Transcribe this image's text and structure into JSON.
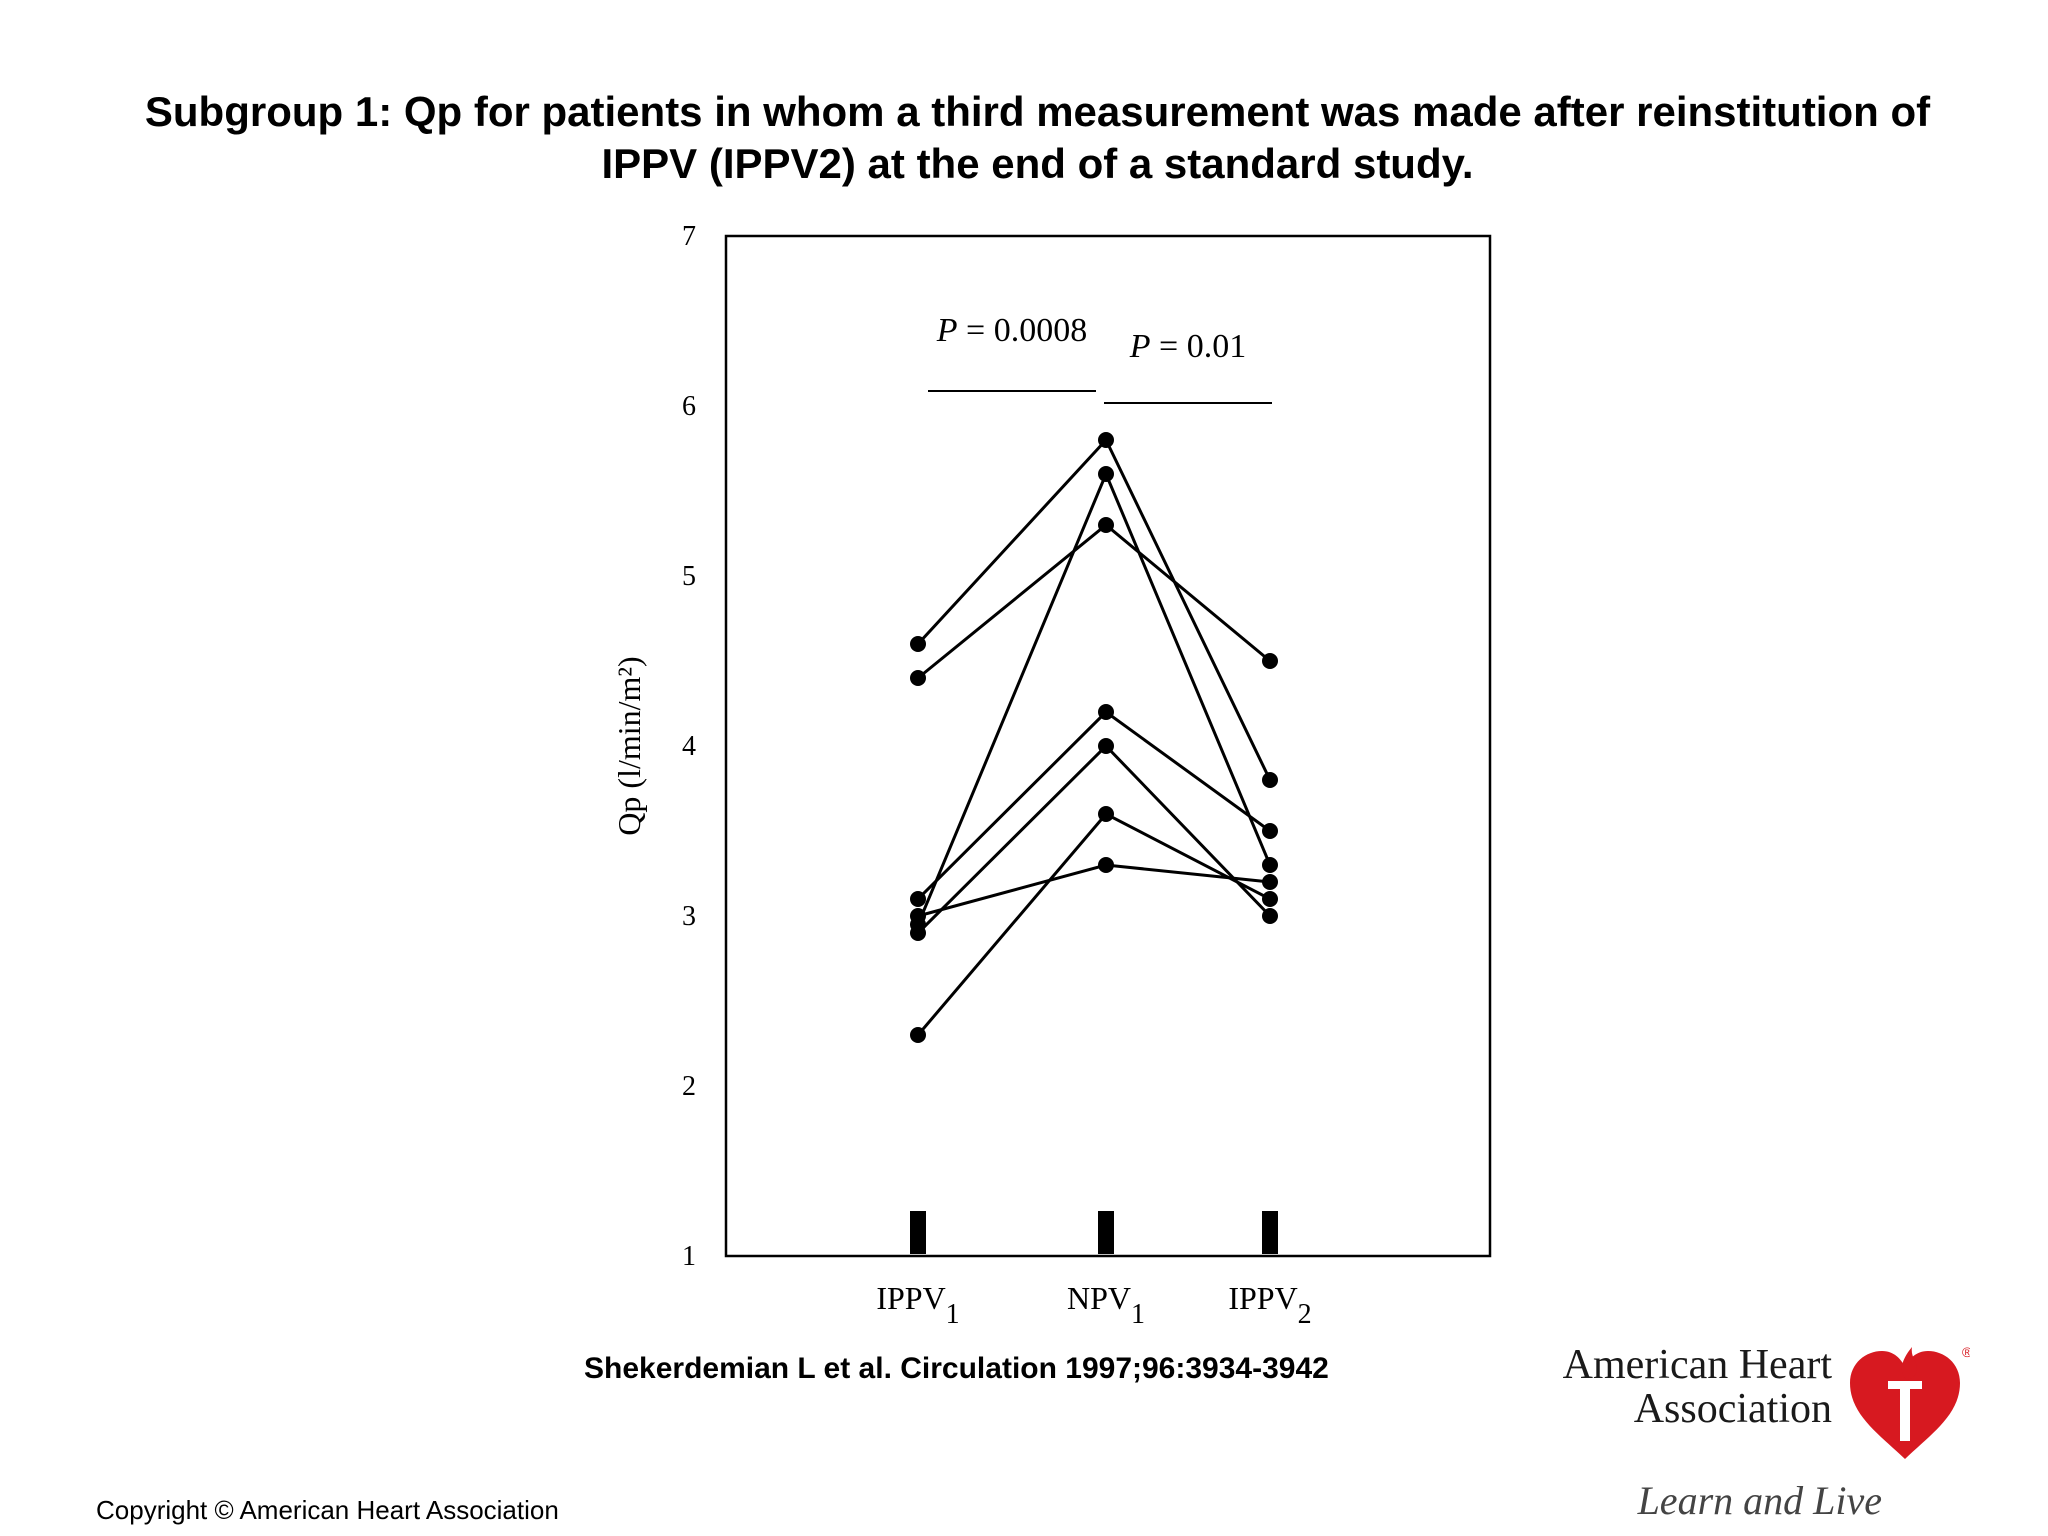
{
  "slide": {
    "title_line1": "Subgroup 1: Qp for patients in whom a third measurement was made after reinstitution of",
    "title_line2": "IPPV (IPPV2) at the end of a standard study.",
    "citation": "Shekerdemian L et al. Circulation 1997;96:3934-3942",
    "copyright": "Copyright © American Heart Association"
  },
  "logo": {
    "name_line1": "American Heart",
    "name_line2": "Association",
    "tagline": "Learn and Live",
    "registered": "®",
    "color": "#d71920"
  },
  "chart_data": {
    "type": "line",
    "title": "",
    "xlabel": "",
    "ylabel": "Qp (l/min/m²)",
    "ylim": [
      1,
      7
    ],
    "yticks": [
      1,
      2,
      3,
      4,
      5,
      6,
      7
    ],
    "categories": [
      {
        "base": "IPPV",
        "sub": "1"
      },
      {
        "base": "NPV",
        "sub": "1"
      },
      {
        "base": "IPPV",
        "sub": "2"
      }
    ],
    "series": [
      {
        "values": [
          4.6,
          5.8,
          3.8
        ]
      },
      {
        "values": [
          4.4,
          5.3,
          4.5
        ]
      },
      {
        "values": [
          2.95,
          5.6,
          3.3
        ]
      },
      {
        "values": [
          3.1,
          4.2,
          3.5
        ]
      },
      {
        "values": [
          3.0,
          3.3,
          3.2
        ]
      },
      {
        "values": [
          2.9,
          4.0,
          3.0
        ]
      },
      {
        "values": [
          2.3,
          3.6,
          3.1
        ]
      }
    ],
    "annotations": [
      {
        "text": "P = 0.0008",
        "between": [
          0,
          1
        ]
      },
      {
        "text": "P = 0.01",
        "between": [
          1,
          2
        ]
      }
    ],
    "grid": false,
    "legend": "none",
    "color": "#000000"
  }
}
